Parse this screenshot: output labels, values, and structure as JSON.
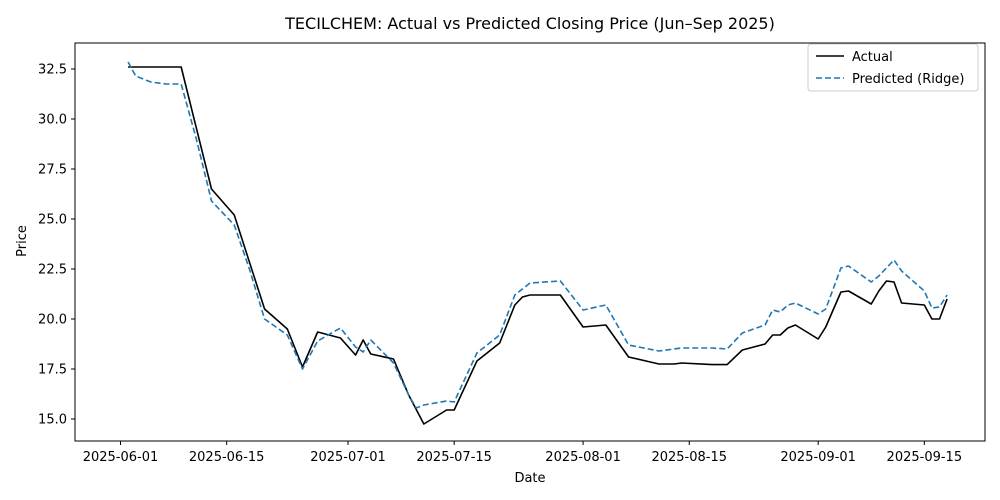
{
  "chart_data": {
    "type": "line",
    "title": "TECILCHEM: Actual vs Predicted Closing Price (Jun–Sep 2025)",
    "xlabel": "Date",
    "ylabel": "Price",
    "xlim": [
      "2025-05-26",
      "2025-09-23"
    ],
    "ylim": [
      13.9,
      33.8
    ],
    "x_ticks": [
      "2025-06-01",
      "2025-06-15",
      "2025-07-01",
      "2025-07-15",
      "2025-08-01",
      "2025-08-15",
      "2025-09-01",
      "2025-09-15"
    ],
    "y_ticks": [
      15.0,
      17.5,
      20.0,
      22.5,
      25.0,
      27.5,
      30.0,
      32.5
    ],
    "y_tick_labels": [
      "15.0",
      "17.5",
      "20.0",
      "22.5",
      "25.0",
      "27.5",
      "30.0",
      "32.5"
    ],
    "grid": false,
    "legend": {
      "position": "top-right",
      "entries": [
        "Actual",
        "Predicted (Ridge)"
      ]
    },
    "series": [
      {
        "name": "Actual",
        "color": "#000000",
        "style": "solid",
        "points": [
          [
            "2025-06-02",
            32.6
          ],
          [
            "2025-06-09",
            32.6
          ],
          [
            "2025-06-13",
            26.5
          ],
          [
            "2025-06-16",
            25.2
          ],
          [
            "2025-06-20",
            20.5
          ],
          [
            "2025-06-23",
            19.5
          ],
          [
            "2025-06-25",
            17.6
          ],
          [
            "2025-06-27",
            19.35
          ],
          [
            "2025-06-30",
            19.05
          ],
          [
            "2025-07-02",
            18.2
          ],
          [
            "2025-07-03",
            18.95
          ],
          [
            "2025-07-04",
            18.25
          ],
          [
            "2025-07-07",
            18.0
          ],
          [
            "2025-07-09",
            16.2
          ],
          [
            "2025-07-11",
            14.75
          ],
          [
            "2025-07-14",
            15.45
          ],
          [
            "2025-07-15",
            15.45
          ],
          [
            "2025-07-18",
            17.9
          ],
          [
            "2025-07-21",
            18.8
          ],
          [
            "2025-07-23",
            20.7
          ],
          [
            "2025-07-24",
            21.1
          ],
          [
            "2025-07-25",
            21.2
          ],
          [
            "2025-07-28",
            21.2
          ],
          [
            "2025-07-29",
            21.2
          ],
          [
            "2025-08-01",
            19.6
          ],
          [
            "2025-08-04",
            19.7
          ],
          [
            "2025-08-07",
            18.1
          ],
          [
            "2025-08-11",
            17.75
          ],
          [
            "2025-08-13",
            17.75
          ],
          [
            "2025-08-14",
            17.8
          ],
          [
            "2025-08-18",
            17.72
          ],
          [
            "2025-08-20",
            17.72
          ],
          [
            "2025-08-22",
            18.45
          ],
          [
            "2025-08-25",
            18.75
          ],
          [
            "2025-08-26",
            19.2
          ],
          [
            "2025-08-27",
            19.2
          ],
          [
            "2025-08-28",
            19.55
          ],
          [
            "2025-08-29",
            19.7
          ],
          [
            "2025-09-01",
            19.0
          ],
          [
            "2025-09-02",
            19.6
          ],
          [
            "2025-09-04",
            21.35
          ],
          [
            "2025-09-05",
            21.4
          ],
          [
            "2025-09-08",
            20.75
          ],
          [
            "2025-09-09",
            21.4
          ],
          [
            "2025-09-10",
            21.9
          ],
          [
            "2025-09-11",
            21.85
          ],
          [
            "2025-09-12",
            20.8
          ],
          [
            "2025-09-15",
            20.7
          ],
          [
            "2025-09-16",
            20.0
          ],
          [
            "2025-09-17",
            20.0
          ],
          [
            "2025-09-18",
            21.0
          ]
        ]
      },
      {
        "name": "Predicted (Ridge)",
        "color": "#1f77b4",
        "style": "dashed",
        "points": [
          [
            "2025-06-02",
            32.85
          ],
          [
            "2025-06-03",
            32.15
          ],
          [
            "2025-06-05",
            31.85
          ],
          [
            "2025-06-07",
            31.75
          ],
          [
            "2025-06-09",
            31.75
          ],
          [
            "2025-06-11",
            29.0
          ],
          [
            "2025-06-13",
            25.9
          ],
          [
            "2025-06-16",
            24.7
          ],
          [
            "2025-06-18",
            22.5
          ],
          [
            "2025-06-20",
            20.0
          ],
          [
            "2025-06-23",
            19.2
          ],
          [
            "2025-06-25",
            17.5
          ],
          [
            "2025-06-27",
            18.9
          ],
          [
            "2025-06-30",
            19.55
          ],
          [
            "2025-07-02",
            18.6
          ],
          [
            "2025-07-03",
            18.35
          ],
          [
            "2025-07-04",
            18.95
          ],
          [
            "2025-07-07",
            17.8
          ],
          [
            "2025-07-09",
            16.2
          ],
          [
            "2025-07-10",
            15.55
          ],
          [
            "2025-07-11",
            15.7
          ],
          [
            "2025-07-14",
            15.9
          ],
          [
            "2025-07-15",
            15.85
          ],
          [
            "2025-07-18",
            18.3
          ],
          [
            "2025-07-21",
            19.2
          ],
          [
            "2025-07-23",
            21.2
          ],
          [
            "2025-07-25",
            21.8
          ],
          [
            "2025-07-29",
            21.9
          ],
          [
            "2025-08-01",
            20.45
          ],
          [
            "2025-08-04",
            20.7
          ],
          [
            "2025-08-07",
            18.7
          ],
          [
            "2025-08-11",
            18.4
          ],
          [
            "2025-08-14",
            18.55
          ],
          [
            "2025-08-18",
            18.55
          ],
          [
            "2025-08-20",
            18.5
          ],
          [
            "2025-08-22",
            19.3
          ],
          [
            "2025-08-25",
            19.7
          ],
          [
            "2025-08-26",
            20.45
          ],
          [
            "2025-08-27",
            20.35
          ],
          [
            "2025-08-28",
            20.7
          ],
          [
            "2025-08-29",
            20.8
          ],
          [
            "2025-09-01",
            20.25
          ],
          [
            "2025-09-02",
            20.5
          ],
          [
            "2025-09-04",
            22.55
          ],
          [
            "2025-09-05",
            22.65
          ],
          [
            "2025-09-08",
            21.85
          ],
          [
            "2025-09-09",
            22.15
          ],
          [
            "2025-09-11",
            22.95
          ],
          [
            "2025-09-12",
            22.4
          ],
          [
            "2025-09-15",
            21.4
          ],
          [
            "2025-09-16",
            20.55
          ],
          [
            "2025-09-17",
            20.6
          ],
          [
            "2025-09-18",
            21.2
          ]
        ]
      }
    ]
  }
}
